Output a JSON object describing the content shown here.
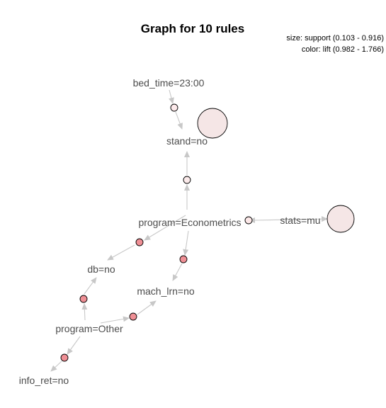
{
  "title": "Graph for 10 rules",
  "legend": {
    "size_text": "size: support (0.103 - 0.916)",
    "color_text": "color: lift (0.982 - 1.766)"
  },
  "items": [
    {
      "id": "bed_time",
      "label": "bed_time=23:00"
    },
    {
      "id": "stand",
      "label": "stand=no"
    },
    {
      "id": "program_econ",
      "label": "program=Econometrics"
    },
    {
      "id": "stats",
      "label": "stats=mu"
    },
    {
      "id": "db",
      "label": "db=no"
    },
    {
      "id": "mach_lrn",
      "label": "mach_lrn=no"
    },
    {
      "id": "program_other",
      "label": "program=Other"
    },
    {
      "id": "info_ret",
      "label": "info_ret=no"
    }
  ],
  "rules": [
    {
      "id": "r1",
      "lhs": [
        "bed_time"
      ],
      "rhs": "stand",
      "color": "#fce9ea"
    },
    {
      "id": "r2",
      "lhs": [
        "stats"
      ],
      "rhs": "stand",
      "color": "#f5e6e6"
    },
    {
      "id": "r3",
      "lhs": [
        "program_econ"
      ],
      "rhs": "stand",
      "color": "#fbeaea"
    },
    {
      "id": "r4",
      "lhs": [
        "program_econ"
      ],
      "rhs": "stats",
      "color": "#f5e6e6"
    },
    {
      "id": "r5",
      "lhs": [
        "program_econ"
      ],
      "rhs": "db",
      "color": "#ef8f95"
    },
    {
      "id": "r6",
      "lhs": [
        "program_econ"
      ],
      "rhs": "mach_lrn",
      "color": "#ef8f95"
    },
    {
      "id": "r7",
      "lhs": [
        "program_other"
      ],
      "rhs": "db",
      "color": "#ef8f95"
    },
    {
      "id": "r8",
      "lhs": [
        "program_other"
      ],
      "rhs": "mach_lrn",
      "color": "#ef8f95"
    },
    {
      "id": "r9",
      "lhs": [
        "program_other"
      ],
      "rhs": "info_ret",
      "color": "#ef8f95"
    },
    {
      "id": "r10",
      "lhs": [
        "stats"
      ],
      "rhs": "stand",
      "color": "#fce8e8"
    }
  ],
  "colors": {
    "edge": "#c8c8c8",
    "node_stroke": "#000000",
    "label": "#4d4d4d"
  }
}
